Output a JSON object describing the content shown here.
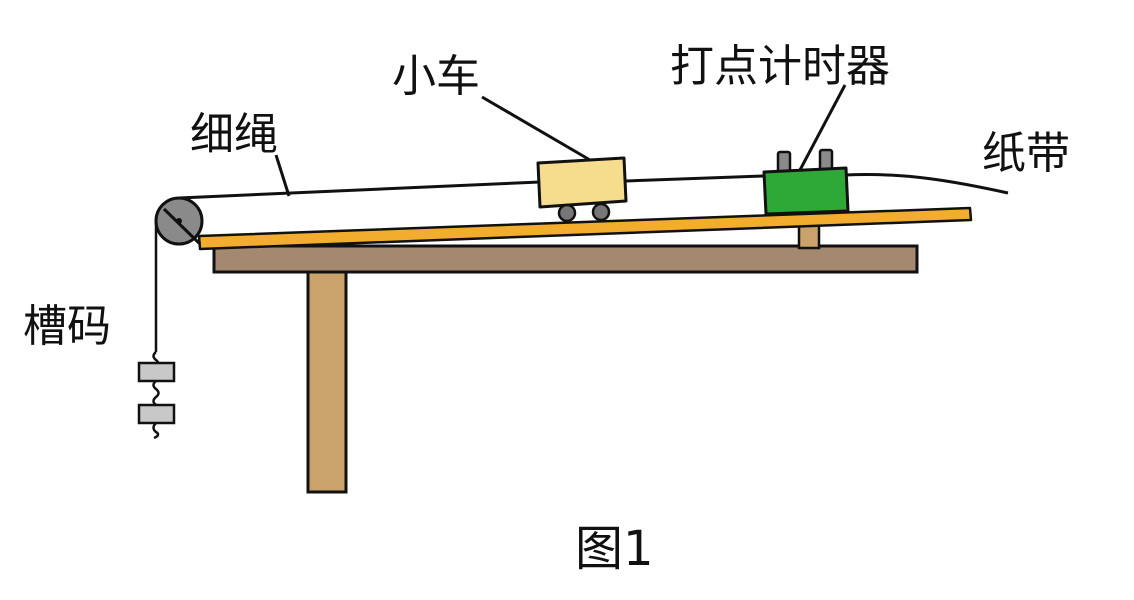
{
  "labels": {
    "string": "细绳",
    "cart": "小车",
    "timer": "打点计时器",
    "tape": "纸带",
    "weights": "槽码",
    "caption": "图1"
  }
}
